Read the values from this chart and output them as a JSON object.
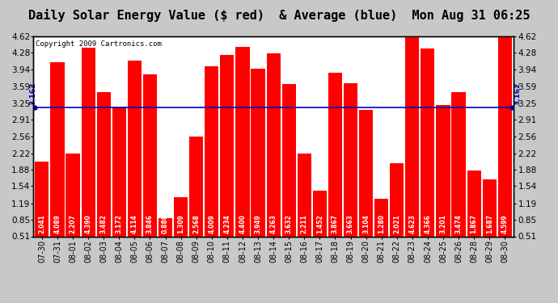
{
  "title": "Daily Solar Energy Value ($ red)  & Average (blue)  Mon Aug 31 06:25",
  "copyright": "Copyright 2009 Cartronics.com",
  "average": 3.162,
  "average_label": "3.162",
  "categories": [
    "07-30",
    "07-31",
    "08-01",
    "08-02",
    "08-03",
    "08-04",
    "08-05",
    "08-06",
    "08-07",
    "08-08",
    "08-09",
    "08-10",
    "08-11",
    "08-12",
    "08-13",
    "08-14",
    "08-15",
    "08-16",
    "08-17",
    "08-18",
    "08-19",
    "08-20",
    "08-21",
    "08-22",
    "08-23",
    "08-24",
    "08-25",
    "08-26",
    "08-28",
    "08-29",
    "08-30"
  ],
  "values": [
    2.041,
    4.089,
    2.207,
    4.39,
    3.482,
    3.172,
    4.114,
    3.846,
    0.88,
    1.309,
    2.568,
    4.009,
    4.234,
    4.4,
    3.949,
    4.263,
    3.632,
    2.211,
    1.452,
    3.867,
    3.663,
    3.104,
    1.28,
    2.021,
    4.623,
    4.366,
    3.201,
    3.474,
    1.867,
    1.687,
    4.599
  ],
  "bar_color": "#ff0000",
  "line_color": "#0000bb",
  "bg_color": "#ffffff",
  "plot_bg_color": "#ffffff",
  "outer_bg_color": "#c8c8c8",
  "ylim": [
    0.51,
    4.62
  ],
  "yticks": [
    0.51,
    0.85,
    1.19,
    1.54,
    1.88,
    2.22,
    2.56,
    2.91,
    3.25,
    3.59,
    3.94,
    4.28,
    4.62
  ],
  "title_fontsize": 11,
  "copyright_fontsize": 6.5,
  "label_fontsize": 5.5,
  "tick_fontsize": 7.5
}
